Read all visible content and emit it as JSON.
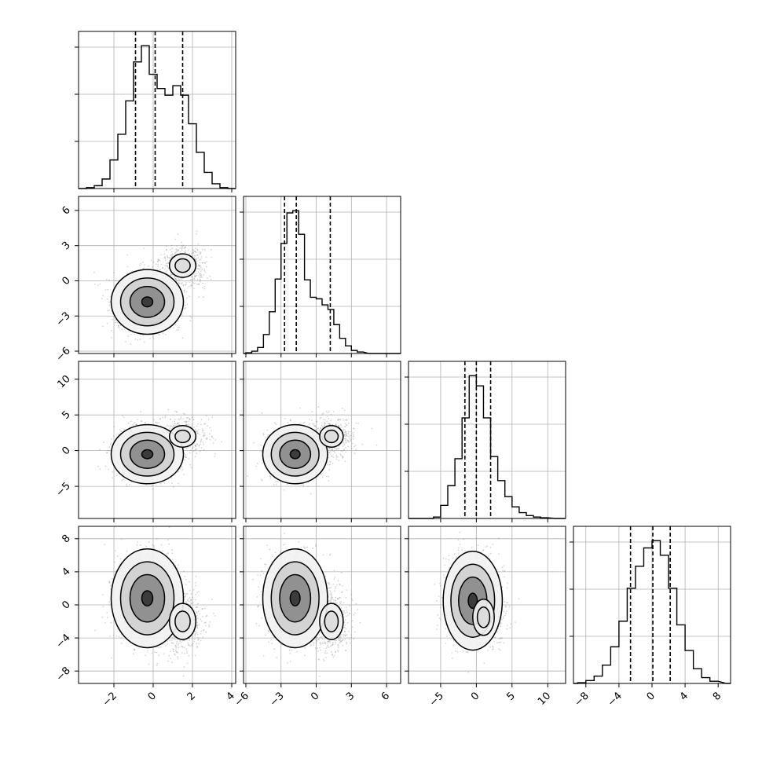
{
  "chart_data": {
    "type": "corner-plot",
    "n_params": 4,
    "colors": {
      "hist_line": "#000000",
      "scatter": "#888888",
      "grid": "#b0b0b0"
    },
    "params": [
      {
        "range": [
          -3.8,
          4.2
        ],
        "ticks": [
          -2,
          0,
          2,
          4
        ],
        "tick_labels": [
          "−2",
          "0",
          "2",
          "4"
        ],
        "quantiles": [
          -0.9,
          0.1,
          1.5
        ],
        "hist_bins": [
          -3.4,
          -3.0,
          -2.6,
          -2.2,
          -1.8,
          -1.4,
          -1.0,
          -0.6,
          -0.2,
          0.2,
          0.6,
          1.0,
          1.4,
          1.8,
          2.2,
          2.6,
          3.0,
          3.4
        ],
        "hist_counts": [
          1,
          3,
          10,
          30,
          57,
          92,
          133,
          150,
          120,
          105,
          98,
          108,
          98,
          68,
          38,
          17,
          5,
          1
        ]
      },
      {
        "range": [
          -6.2,
          7.2
        ],
        "ticks": [
          -6,
          -3,
          0,
          3,
          6
        ],
        "tick_labels": [
          "−6",
          "−3",
          "0",
          "3",
          "6"
        ],
        "quantiles": [
          -2.7,
          -1.7,
          1.2
        ],
        "hist_bins": [
          -6.0,
          -5.5,
          -5.0,
          -4.5,
          -4.0,
          -3.5,
          -3.0,
          -2.5,
          -2.0,
          -1.5,
          -1.0,
          -0.5,
          0.0,
          0.5,
          1.0,
          1.5,
          2.0,
          2.5,
          3.0,
          3.5,
          4.0
        ],
        "hist_counts": [
          1,
          3,
          8,
          25,
          55,
          98,
          145,
          185,
          188,
          157,
          97,
          74,
          72,
          64,
          58,
          38,
          20,
          10,
          4,
          2
        ]
      },
      {
        "range": [
          -9.5,
          12.5
        ],
        "ticks": [
          -5,
          0,
          5,
          10
        ],
        "tick_labels": [
          "−5",
          "0",
          "5",
          "10"
        ],
        "quantiles": [
          -1.6,
          0.0,
          2.0
        ],
        "hist_bins": [
          -6.0,
          -5.0,
          -4.0,
          -3.0,
          -2.0,
          -1.0,
          0.0,
          1.0,
          2.0,
          3.0,
          4.0,
          5.0,
          6.0,
          7.0,
          8.0,
          9.0,
          10.0
        ],
        "hist_counts": [
          2,
          18,
          45,
          82,
          138,
          196,
          182,
          138,
          85,
          52,
          30,
          16,
          8,
          4,
          2,
          1
        ]
      },
      {
        "range": [
          -9.5,
          9.5
        ],
        "ticks": [
          -8,
          -4,
          0,
          4,
          8
        ],
        "tick_labels": [
          "−8",
          "−4",
          "0",
          "4",
          "8"
        ],
        "quantiles": [
          -2.6,
          0.1,
          2.2
        ],
        "hist_bins": [
          -9.0,
          -8.0,
          -7.0,
          -6.0,
          -5.0,
          -4.0,
          -3.0,
          -2.0,
          -1.0,
          0.0,
          1.0,
          2.0,
          3.0,
          4.0,
          5.0,
          6.0,
          7.0,
          8.0
        ],
        "hist_counts": [
          1,
          4,
          10,
          25,
          50,
          85,
          130,
          160,
          185,
          195,
          175,
          130,
          80,
          45,
          20,
          8,
          3
        ]
      }
    ],
    "pair_modes": {
      "1_0": [
        {
          "x": -0.3,
          "y": -1.8,
          "w": 0.75
        },
        {
          "x": 1.5,
          "y": 1.3,
          "w": 0.25
        }
      ],
      "2_0": [
        {
          "x": -0.3,
          "y": -0.5,
          "w": 0.75
        },
        {
          "x": 1.5,
          "y": 2.0,
          "w": 0.25
        }
      ],
      "2_1": [
        {
          "x": -1.8,
          "y": -0.5,
          "w": 0.75
        },
        {
          "x": 1.3,
          "y": 2.0,
          "w": 0.25
        }
      ],
      "3_0": [
        {
          "x": -0.3,
          "y": 0.8,
          "w": 0.75
        },
        {
          "x": 1.5,
          "y": -2.0,
          "w": 0.25
        }
      ],
      "3_1": [
        {
          "x": -1.8,
          "y": 0.8,
          "w": 0.75
        },
        {
          "x": 1.3,
          "y": -2.0,
          "w": 0.25
        }
      ],
      "3_2": [
        {
          "x": -0.5,
          "y": 0.5,
          "w": 0.85
        },
        {
          "x": 1.0,
          "y": -1.5,
          "w": 0.15
        }
      ]
    }
  }
}
